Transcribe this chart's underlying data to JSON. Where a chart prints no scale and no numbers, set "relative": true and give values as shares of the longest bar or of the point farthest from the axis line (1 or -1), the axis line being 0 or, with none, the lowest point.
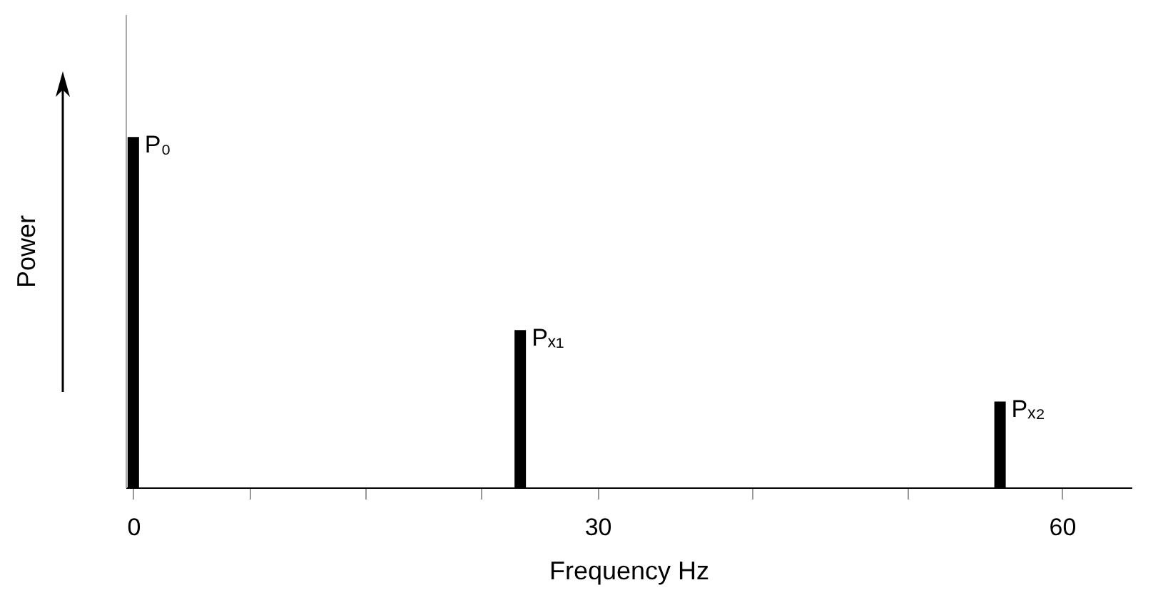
{
  "chart_data": {
    "type": "bar",
    "relative": true,
    "xlabel": "Frequency Hz",
    "ylabel": "Power",
    "x": [
      0,
      25,
      56
    ],
    "series": [
      {
        "color": "#000000",
        "values": [
          1,
          0.449,
          0.245
        ]
      }
    ],
    "xlim": [
      -0.5,
      64.5
    ],
    "xticks": [
      0,
      {
        "value": 7.5,
        "label": null
      },
      {
        "value": 15,
        "label": null
      },
      {
        "value": 22.5,
        "label": null
      },
      30,
      {
        "value": 40,
        "label": null
      },
      {
        "value": 50,
        "label": null
      },
      60
    ],
    "annotations": [
      {
        "text": "P₀",
        "x": 0,
        "y": 1
      },
      {
        "text": "Pₓ₁",
        "x": 25,
        "y": 0.449
      },
      {
        "text": "Pₓ₂",
        "x": 56,
        "y": 0.245
      }
    ],
    "grid": false
  }
}
